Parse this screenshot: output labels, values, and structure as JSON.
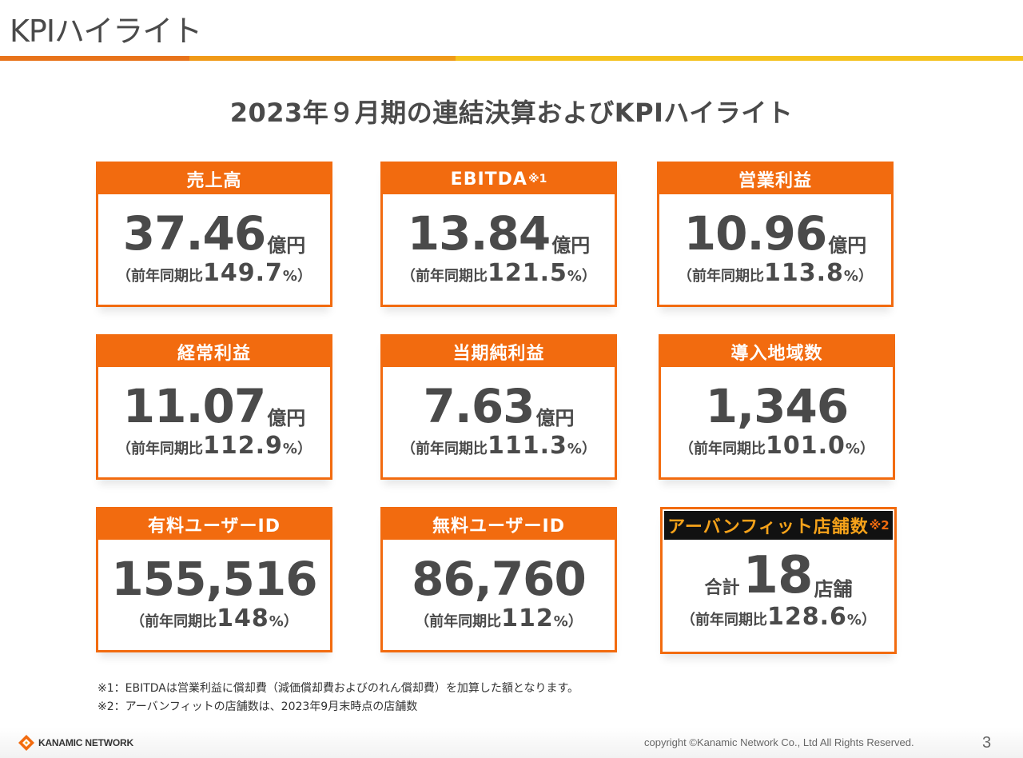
{
  "page": {
    "title": "KPIハイライト",
    "headline": "2023年９月期の連結決算およびKPIハイライト"
  },
  "cards": [
    {
      "label": "売上高",
      "note": "",
      "prefix": "",
      "value": "37.46",
      "unit": "億円",
      "yoy_label": "（前年同期比",
      "yoy_value": "149.7",
      "yoy_suffix": "%）"
    },
    {
      "label": "EBITDA",
      "note": "※1",
      "prefix": "",
      "value": "13.84",
      "unit": "億円",
      "yoy_label": "（前年同期比",
      "yoy_value": "121.5",
      "yoy_suffix": "%）"
    },
    {
      "label": "営業利益",
      "note": "",
      "prefix": "",
      "value": "10.96",
      "unit": "億円",
      "yoy_label": "（前年同期比",
      "yoy_value": "113.8",
      "yoy_suffix": "%）"
    },
    {
      "label": "経常利益",
      "note": "",
      "prefix": "",
      "value": "11.07",
      "unit": "億円",
      "yoy_label": "（前年同期比",
      "yoy_value": "112.9",
      "yoy_suffix": "%）"
    },
    {
      "label": "当期純利益",
      "note": "",
      "prefix": "",
      "value": "7.63",
      "unit": "億円",
      "yoy_label": "（前年同期比",
      "yoy_value": "111.3",
      "yoy_suffix": "%）"
    },
    {
      "label": "導入地域数",
      "note": "",
      "prefix": "",
      "value": "1,346",
      "unit": "",
      "yoy_label": "（前年同期比",
      "yoy_value": "101.0",
      "yoy_suffix": "%）"
    },
    {
      "label": "有料ユーザーID",
      "note": "",
      "prefix": "",
      "value": "155,516",
      "unit": "",
      "yoy_label": "（前年同期比",
      "yoy_value": "148",
      "yoy_suffix": "%）"
    },
    {
      "label": "無料ユーザーID",
      "note": "",
      "prefix": "",
      "value": "86,760",
      "unit": "",
      "yoy_label": "（前年同期比",
      "yoy_value": "112",
      "yoy_suffix": "%）"
    },
    {
      "label": "アーバンフィット店舗数",
      "note": "※2",
      "prefix": "合計",
      "value": "18",
      "unit": "店舗",
      "yoy_label": "（前年同期比",
      "yoy_value": "128.6",
      "yoy_suffix": "%）"
    }
  ],
  "footnotes": {
    "note1": "※1：EBITDAは営業利益に償却費（減価償却費およびのれん償却費）を加算した額となります。",
    "note2": "※2：アーバンフィットの店舗数は、2023年9月末時点の店舗数"
  },
  "footer": {
    "logo_text": "KANAMIC NETWORK",
    "copyright": "copyright ©Kanamic Network Co., Ltd All Rights Reserved.",
    "page_number": "3"
  },
  "colors": {
    "accent_orange": "#f26b0f",
    "highlight_header_bg": "#111111",
    "highlight_header_text": "#f5a21a",
    "text_dark": "#4a4a4a"
  }
}
